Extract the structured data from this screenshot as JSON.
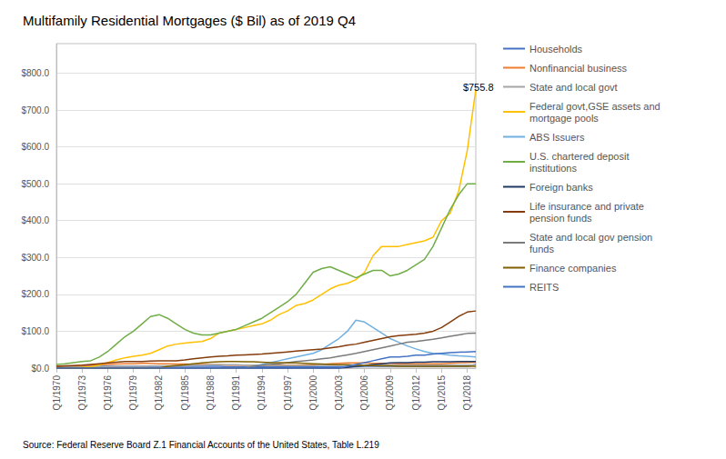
{
  "chart_data": {
    "type": "line",
    "title": "Multifamily Residential Mortgages ($ Bil) as of 2019 Q4",
    "source": "Source: Federal Reserve Board Z.1 Financial Accounts of the United States, Table L.219",
    "annotations": [
      {
        "text": "$755.8",
        "x": 47.5,
        "y": 762
      }
    ],
    "categories": [
      "Q1/1970",
      null,
      null,
      "Q1/1973",
      null,
      null,
      "Q1/1976",
      null,
      null,
      "Q1/1979",
      null,
      null,
      "Q1/1982",
      null,
      null,
      "Q1/1985",
      null,
      null,
      "Q1/1988",
      null,
      null,
      "Q1/1991",
      null,
      null,
      "Q1/1994",
      null,
      null,
      "Q1/1997",
      null,
      null,
      "Q1/2000",
      null,
      null,
      "Q1/2003",
      null,
      null,
      "Q1/2006",
      null,
      null,
      "Q1/2009",
      null,
      null,
      "Q1/2012",
      null,
      null,
      "Q1/2015",
      null,
      null,
      "Q1/2018",
      null
    ],
    "ylim": [
      0,
      880
    ],
    "yticks": [
      {
        "value": 0,
        "label": "$0.0"
      },
      {
        "value": 100,
        "label": "$100.0"
      },
      {
        "value": 200,
        "label": "$200.0"
      },
      {
        "value": 300,
        "label": "$300.0"
      },
      {
        "value": 400,
        "label": "$400.0"
      },
      {
        "value": 500,
        "label": "$500.0"
      },
      {
        "value": 600,
        "label": "$600.0"
      },
      {
        "value": 700,
        "label": "$700.0"
      },
      {
        "value": 800,
        "label": "$800.0"
      }
    ],
    "grid": true,
    "legend": "right",
    "series": [
      {
        "name": "Households",
        "color": "#4472C4",
        "values": [
          5,
          5,
          5,
          5,
          5,
          5,
          5,
          5,
          5,
          5,
          5,
          5,
          5,
          5,
          5,
          5,
          5,
          5,
          5,
          5,
          4,
          4,
          4,
          4,
          4,
          4,
          4,
          4,
          4,
          4,
          4,
          4,
          4,
          4,
          4,
          4,
          5,
          5,
          5,
          5,
          5,
          5,
          5,
          5,
          5,
          5,
          5,
          5,
          5,
          10
        ]
      },
      {
        "name": "Nonfinancial business",
        "color": "#ED7D31",
        "values": [
          5,
          5,
          6,
          7,
          8,
          9,
          10,
          11,
          12,
          12,
          13,
          13,
          12,
          12,
          11,
          11,
          10,
          10,
          9,
          9,
          8,
          8,
          8,
          8,
          8,
          8,
          8,
          8,
          8,
          8,
          9,
          10,
          12,
          13,
          14,
          14,
          14,
          13,
          13,
          13,
          12,
          12,
          12,
          12,
          12,
          12,
          13,
          14,
          15,
          16
        ]
      },
      {
        "name": "State and local govt",
        "color": "#A5A5A5",
        "values": [
          2,
          2,
          2,
          3,
          3,
          4,
          4,
          5,
          5,
          5,
          5,
          6,
          6,
          6,
          7,
          7,
          8,
          8,
          9,
          9,
          9,
          9,
          8,
          8,
          8,
          8,
          7,
          7,
          7,
          7,
          7,
          8,
          8,
          8,
          8,
          8,
          8,
          8,
          8,
          8,
          8,
          8,
          8,
          8,
          8,
          8,
          8,
          8,
          8,
          8
        ]
      },
      {
        "name": "Federal govt,GSE assets and\nmortgage pools",
        "color": "#FFC000",
        "values": [
          0,
          0,
          1,
          2,
          4,
          8,
          15,
          22,
          28,
          32,
          35,
          40,
          50,
          60,
          65,
          68,
          70,
          72,
          80,
          95,
          100,
          105,
          110,
          115,
          120,
          130,
          145,
          155,
          170,
          175,
          185,
          200,
          215,
          225,
          230,
          240,
          260,
          305,
          330,
          330,
          330,
          335,
          340,
          345,
          355,
          400,
          420,
          480,
          590,
          756
        ]
      },
      {
        "name": "ABS Issuers",
        "color": "#70B0E0",
        "values": [
          0,
          0,
          0,
          0,
          0,
          0,
          0,
          0,
          0,
          0,
          0,
          0,
          0,
          0,
          0,
          0,
          0,
          0,
          0,
          0,
          0,
          0,
          0,
          5,
          10,
          15,
          20,
          25,
          30,
          35,
          40,
          50,
          65,
          80,
          100,
          130,
          125,
          110,
          95,
          80,
          70,
          60,
          52,
          45,
          40,
          38,
          35,
          33,
          32,
          30
        ]
      },
      {
        "name": "U.S. chartered deposit\ninstitutions",
        "color": "#70AD47",
        "values": [
          10,
          12,
          15,
          18,
          20,
          30,
          45,
          65,
          85,
          100,
          120,
          140,
          145,
          135,
          120,
          105,
          95,
          90,
          90,
          95,
          100,
          105,
          115,
          125,
          135,
          150,
          165,
          180,
          200,
          230,
          260,
          270,
          275,
          265,
          255,
          245,
          255,
          265,
          265,
          250,
          255,
          265,
          280,
          295,
          330,
          380,
          430,
          470,
          500,
          500
        ]
      },
      {
        "name": "Foreign banks",
        "color": "#203864",
        "values": [
          0,
          0,
          0,
          0,
          0,
          0,
          0,
          0,
          0,
          0,
          0,
          0,
          0,
          0,
          0,
          0,
          0,
          0,
          0,
          0,
          0,
          0,
          0,
          0,
          0,
          0,
          0,
          0,
          0,
          0,
          0,
          0,
          0,
          0,
          2,
          5,
          7,
          10,
          12,
          14,
          15,
          15,
          16,
          16,
          17,
          17,
          17,
          18,
          18,
          18
        ]
      },
      {
        "name": "Life insurance and private\npension funds",
        "color": "#843C0C",
        "values": [
          5,
          6,
          7,
          8,
          10,
          12,
          14,
          16,
          18,
          18,
          18,
          19,
          20,
          20,
          20,
          22,
          25,
          28,
          30,
          32,
          33,
          35,
          36,
          37,
          38,
          40,
          42,
          44,
          46,
          48,
          50,
          52,
          55,
          58,
          62,
          65,
          70,
          75,
          80,
          85,
          88,
          90,
          92,
          95,
          100,
          110,
          125,
          140,
          152,
          155
        ]
      },
      {
        "name": "State and local gov pension\nfunds",
        "color": "#7B7B7B",
        "values": [
          0,
          0,
          0,
          0,
          0,
          0,
          0,
          0,
          0,
          0,
          0,
          0,
          0,
          0,
          0,
          0,
          0,
          0,
          0,
          0,
          0,
          0,
          0,
          5,
          8,
          10,
          12,
          15,
          18,
          20,
          22,
          25,
          28,
          32,
          36,
          40,
          45,
          50,
          55,
          60,
          65,
          70,
          72,
          75,
          78,
          82,
          86,
          90,
          94,
          95
        ]
      },
      {
        "name": "Finance companies",
        "color": "#806000",
        "values": [
          0,
          0,
          0,
          0,
          0,
          0,
          0,
          0,
          0,
          0,
          0,
          0,
          0,
          5,
          7,
          9,
          12,
          14,
          16,
          17,
          18,
          18,
          17,
          17,
          16,
          15,
          15,
          14,
          14,
          13,
          12,
          11,
          10,
          9,
          9,
          8,
          7,
          7,
          6,
          6,
          5,
          5,
          5,
          5,
          5,
          5,
          5,
          5,
          5,
          5
        ]
      },
      {
        "name": "REITS",
        "color": "#4472C4",
        "values": [
          0,
          0,
          0,
          0,
          0,
          0,
          0,
          0,
          0,
          0,
          0,
          0,
          0,
          0,
          0,
          0,
          0,
          0,
          0,
          0,
          0,
          0,
          0,
          0,
          0,
          0,
          0,
          0,
          0,
          0,
          0,
          0,
          0,
          0,
          5,
          10,
          15,
          20,
          25,
          30,
          30,
          32,
          35,
          35,
          38,
          40,
          42,
          43,
          44,
          45
        ]
      }
    ]
  }
}
